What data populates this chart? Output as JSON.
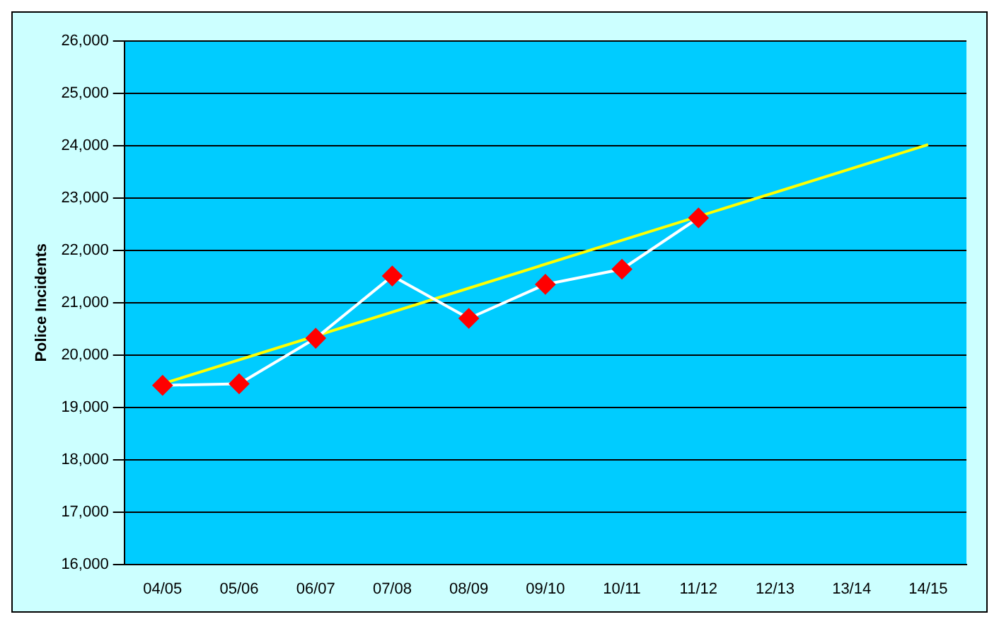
{
  "chart_data": {
    "type": "line",
    "ylabel": "Police Incidents",
    "categories": [
      "04/05",
      "05/06",
      "06/07",
      "07/08",
      "08/09",
      "09/10",
      "10/11",
      "11/12",
      "12/13",
      "13/14",
      "14/15"
    ],
    "series": [
      {
        "color": "#ffffff",
        "marker": "diamond",
        "values": [
          19420,
          19450,
          20320,
          21510,
          20700,
          21350,
          21640,
          22620,
          null,
          null,
          null
        ]
      },
      {
        "type": "line",
        "color": "#ffff00",
        "marker": "none",
        "values": [
          19450,
          null,
          null,
          null,
          null,
          null,
          null,
          null,
          null,
          null,
          24020
        ]
      }
    ],
    "ylim": [
      16000,
      26000
    ],
    "yticks": [
      {
        "value": 16000,
        "label": "16,000"
      },
      {
        "value": 17000,
        "label": "17,000"
      },
      {
        "value": 18000,
        "label": "18,000"
      },
      {
        "value": 19000,
        "label": "19,000"
      },
      {
        "value": 20000,
        "label": "20,000"
      },
      {
        "value": 21000,
        "label": "21,000"
      },
      {
        "value": 22000,
        "label": "22,000"
      },
      {
        "value": 23000,
        "label": "23,000"
      },
      {
        "value": 24000,
        "label": "24,000"
      },
      {
        "value": 25000,
        "label": "25,000"
      },
      {
        "value": 26000,
        "label": "26,000"
      }
    ],
    "grid": "y",
    "legend": false
  }
}
